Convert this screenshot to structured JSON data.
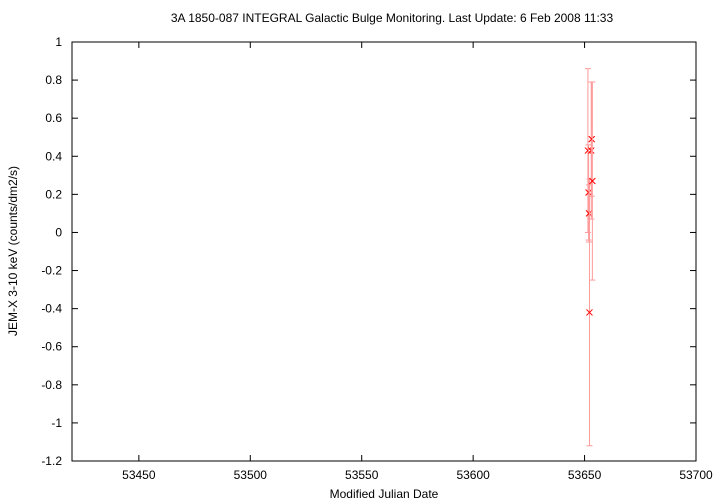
{
  "chart_data": {
    "type": "scatter",
    "title": "3A 1850-087   INTEGRAL Galactic Bulge Monitoring.  Last Update: 6 Feb 2008 11:33",
    "x_label": "Modified Julian Date",
    "y_label": "JEM-X 3-10 keV (counts/dm2/s)",
    "xlim": [
      53420,
      53700
    ],
    "xticks": [
      53450,
      53500,
      53550,
      53600,
      53650,
      53700
    ],
    "ylim": [
      -1.2,
      1
    ],
    "yticks": [
      -1.2,
      -1,
      -0.8,
      -0.6,
      -0.4,
      -0.2,
      0,
      0.2,
      0.4,
      0.6,
      0.8,
      1
    ],
    "series": [
      {
        "color": "#ff0000",
        "error_color": "#ff9a9a",
        "x": [
          53651.5,
          53651.8,
          53652.0,
          53652.2,
          53653.0,
          53653.2,
          53653.5
        ],
        "values": [
          0.43,
          0.21,
          0.1,
          -0.42,
          0.43,
          0.49,
          0.27
        ],
        "errors": [
          0.43,
          0.25,
          0.15,
          0.7,
          0.36,
          0.3,
          0.52
        ]
      }
    ]
  }
}
